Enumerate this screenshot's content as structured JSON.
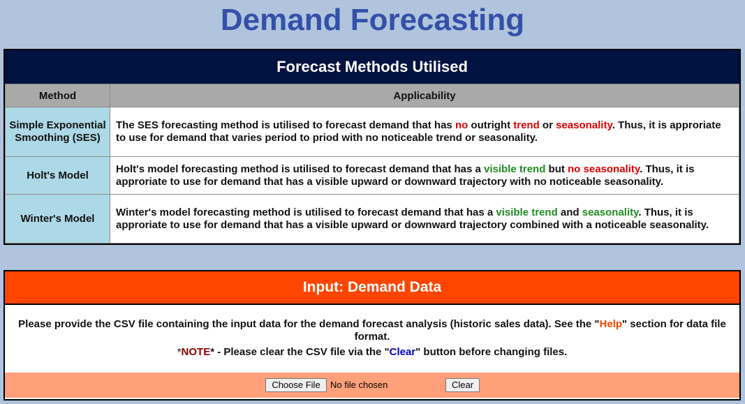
{
  "page": {
    "title": "Demand Forecasting"
  },
  "methods_panel": {
    "header": "Forecast Methods Utilised",
    "columns": [
      "Method",
      "Applicability"
    ],
    "rows": [
      {
        "method": "Simple Exponential Smoothing (SES)",
        "text": {
          "a": "The SES forecasting method is utilised to forecast demand that has ",
          "b": "no",
          "c": " outright ",
          "d": "trend",
          "e": " or ",
          "f": "seasonality",
          "g": ". Thus, it is approriate to use for demand that varies period to priod with no noticeable trend or seasonality."
        }
      },
      {
        "method": "Holt's Model",
        "text": {
          "a": "Holt's model forecasting method is utilised to forecast demand that has a ",
          "b": "visible trend",
          "c": " but ",
          "d": "no seasonality",
          "e": ". Thus, it is approriate to use for demand that has a visible upward or downward trajectory with no noticeable seasonality."
        }
      },
      {
        "method": "Winter's Model",
        "text": {
          "a": "Winter's model forecasting method is utilised to forecast demand that has a ",
          "b": "visible trend",
          "c": " and ",
          "d": "seasonality",
          "e": ". Thus, it is approriate to use for demand that has a visible upward or downward trajectory combined with a noticeable seasonality."
        }
      }
    ]
  },
  "input_panel": {
    "header": "Input: Demand Data",
    "desc_a": "Please provide the CSV file containing the input data for the demand forecast analysis (historic sales data). See the \"",
    "desc_help": "Help",
    "desc_b": "\" section for data file format.",
    "note_prefix": "*",
    "note_word": "NOTE",
    "note_a": "* - Please clear the CSV file via the \"",
    "note_clear": "Clear",
    "note_b": "\" button before changing files.",
    "choose_file_label": "Choose File",
    "file_status": "No file chosen",
    "clear_button_label": "Clear"
  },
  "colors": {
    "background": "#b0c4de",
    "title": "#3450a8",
    "methods_header": "#00123f",
    "method_cell": "#add8e6",
    "input_header": "#ff4500",
    "input_footer": "#ffa07a",
    "highlight_red": "#e00000",
    "highlight_green": "#228b22"
  }
}
